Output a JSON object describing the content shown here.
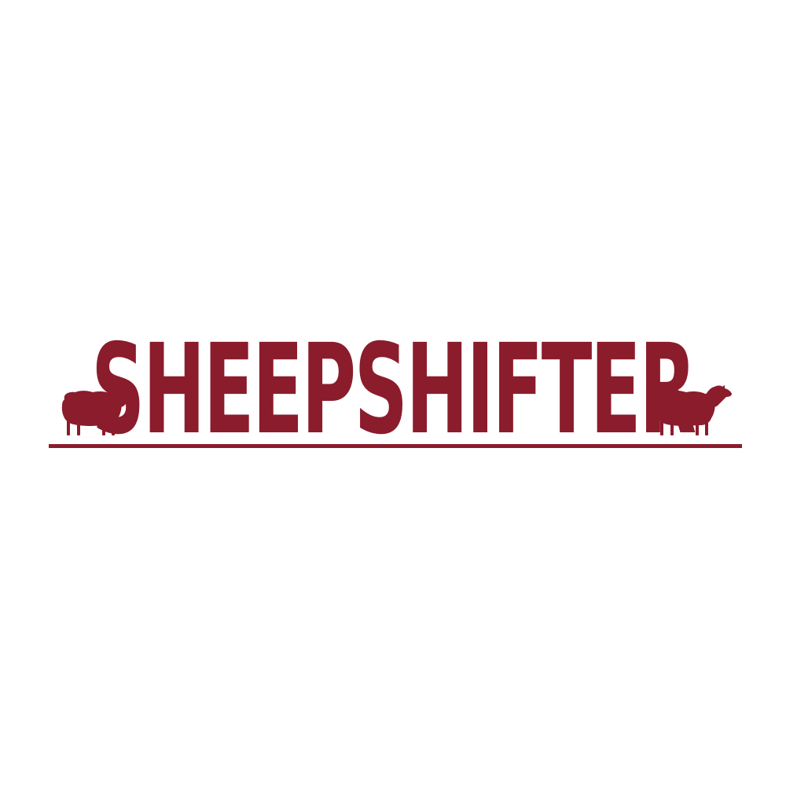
{
  "logo": {
    "wordmark": "SHEEPSHIFTER",
    "sheep_icon": "sheep-icon",
    "brand_color": "#8B1C2C",
    "background_color": "#FFFFFF"
  }
}
